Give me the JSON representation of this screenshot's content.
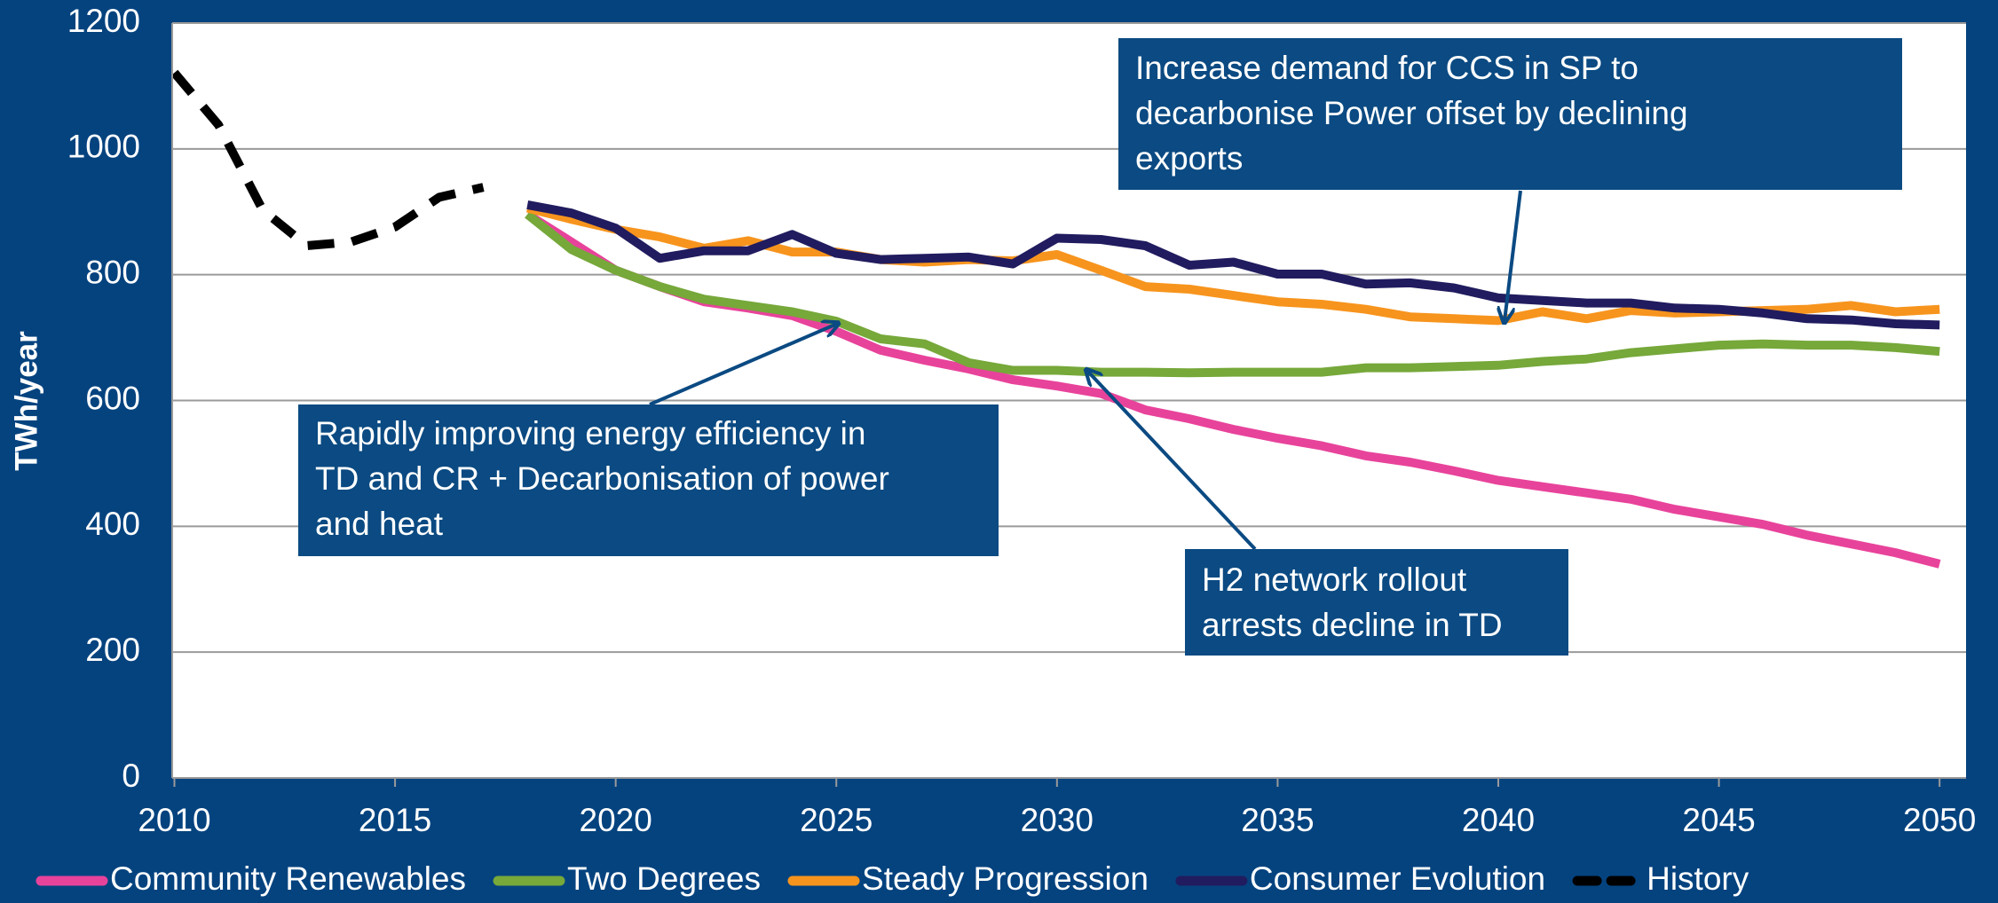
{
  "chart_data": {
    "type": "line",
    "y_label": "TWh/year",
    "x": [
      2010,
      2011,
      2012,
      2013,
      2014,
      2015,
      2016,
      2017,
      2018,
      2019,
      2020,
      2021,
      2022,
      2023,
      2024,
      2025,
      2026,
      2027,
      2028,
      2029,
      2030,
      2031,
      2032,
      2033,
      2034,
      2035,
      2036,
      2037,
      2038,
      2039,
      2040,
      2041,
      2042,
      2043,
      2044,
      2045,
      2046,
      2047,
      2048,
      2049,
      2050
    ],
    "xlim": [
      2009.95,
      2050.6
    ],
    "xticks": [
      2010,
      2015,
      2020,
      2025,
      2030,
      2035,
      2040,
      2045,
      2050
    ],
    "ylim": [
      0,
      1200
    ],
    "yticks": [
      0,
      200,
      400,
      600,
      800,
      1000,
      1200
    ],
    "grid": true,
    "legend": "bottom",
    "series": [
      {
        "name": "Community Renewables",
        "color": "#e8439b",
        "values": [
          null,
          null,
          null,
          null,
          null,
          null,
          null,
          null,
          896,
          852,
          807,
          781,
          757,
          747,
          735,
          710,
          680,
          664,
          650,
          633,
          623,
          611,
          585,
          571,
          554,
          540,
          528,
          512,
          502,
          488,
          473,
          463,
          453,
          443,
          427,
          415,
          403,
          386,
          372,
          358,
          340
        ]
      },
      {
        "name": "Two Degrees",
        "color": "#76a83a",
        "values": [
          null,
          null,
          null,
          null,
          null,
          null,
          null,
          null,
          896,
          840,
          807,
          781,
          761,
          751,
          741,
          726,
          698,
          690,
          660,
          648,
          648,
          645,
          645,
          644,
          645,
          645,
          645,
          652,
          652,
          654,
          656,
          662,
          666,
          676,
          682,
          688,
          690,
          688,
          688,
          684,
          678
        ]
      },
      {
        "name": "Steady Progression",
        "color": "#f7941d",
        "values": [
          null,
          null,
          null,
          null,
          null,
          null,
          null,
          null,
          906,
          888,
          872,
          860,
          842,
          854,
          836,
          836,
          824,
          820,
          824,
          822,
          832,
          807,
          781,
          777,
          767,
          757,
          753,
          745,
          733,
          730,
          727,
          741,
          730,
          743,
          739,
          741,
          743,
          745,
          751,
          741,
          745
        ]
      },
      {
        "name": "Consumer Evolution",
        "color": "#211c5f",
        "values": [
          null,
          null,
          null,
          null,
          null,
          null,
          null,
          null,
          911,
          898,
          874,
          826,
          838,
          838,
          864,
          834,
          824,
          826,
          828,
          817,
          858,
          856,
          846,
          815,
          820,
          801,
          801,
          785,
          787,
          779,
          763,
          759,
          755,
          755,
          747,
          745,
          739,
          730,
          728,
          722,
          720
        ]
      },
      {
        "name": "History",
        "color": "#000000",
        "dashed": true,
        "values": [
          1121,
          1038,
          903,
          846,
          852,
          876,
          923,
          939,
          null,
          null,
          null,
          null,
          null,
          null,
          null,
          null,
          null,
          null,
          null,
          null,
          null,
          null,
          null,
          null,
          null,
          null,
          null,
          null,
          null,
          null,
          null,
          null,
          null,
          null,
          null,
          null,
          null,
          null,
          null,
          null,
          null
        ]
      }
    ],
    "annotations": [
      {
        "lines": [
          "Increase demand for CCS in SP to",
          "decarbonise Power offset by declining",
          "exports"
        ]
      },
      {
        "lines": [
          "Rapidly improving energy efficiency in",
          "TD and CR + Decarbonisation of power",
          "and heat"
        ]
      },
      {
        "lines": [
          "H2 network rollout",
          "arrests decline in TD"
        ]
      }
    ]
  }
}
